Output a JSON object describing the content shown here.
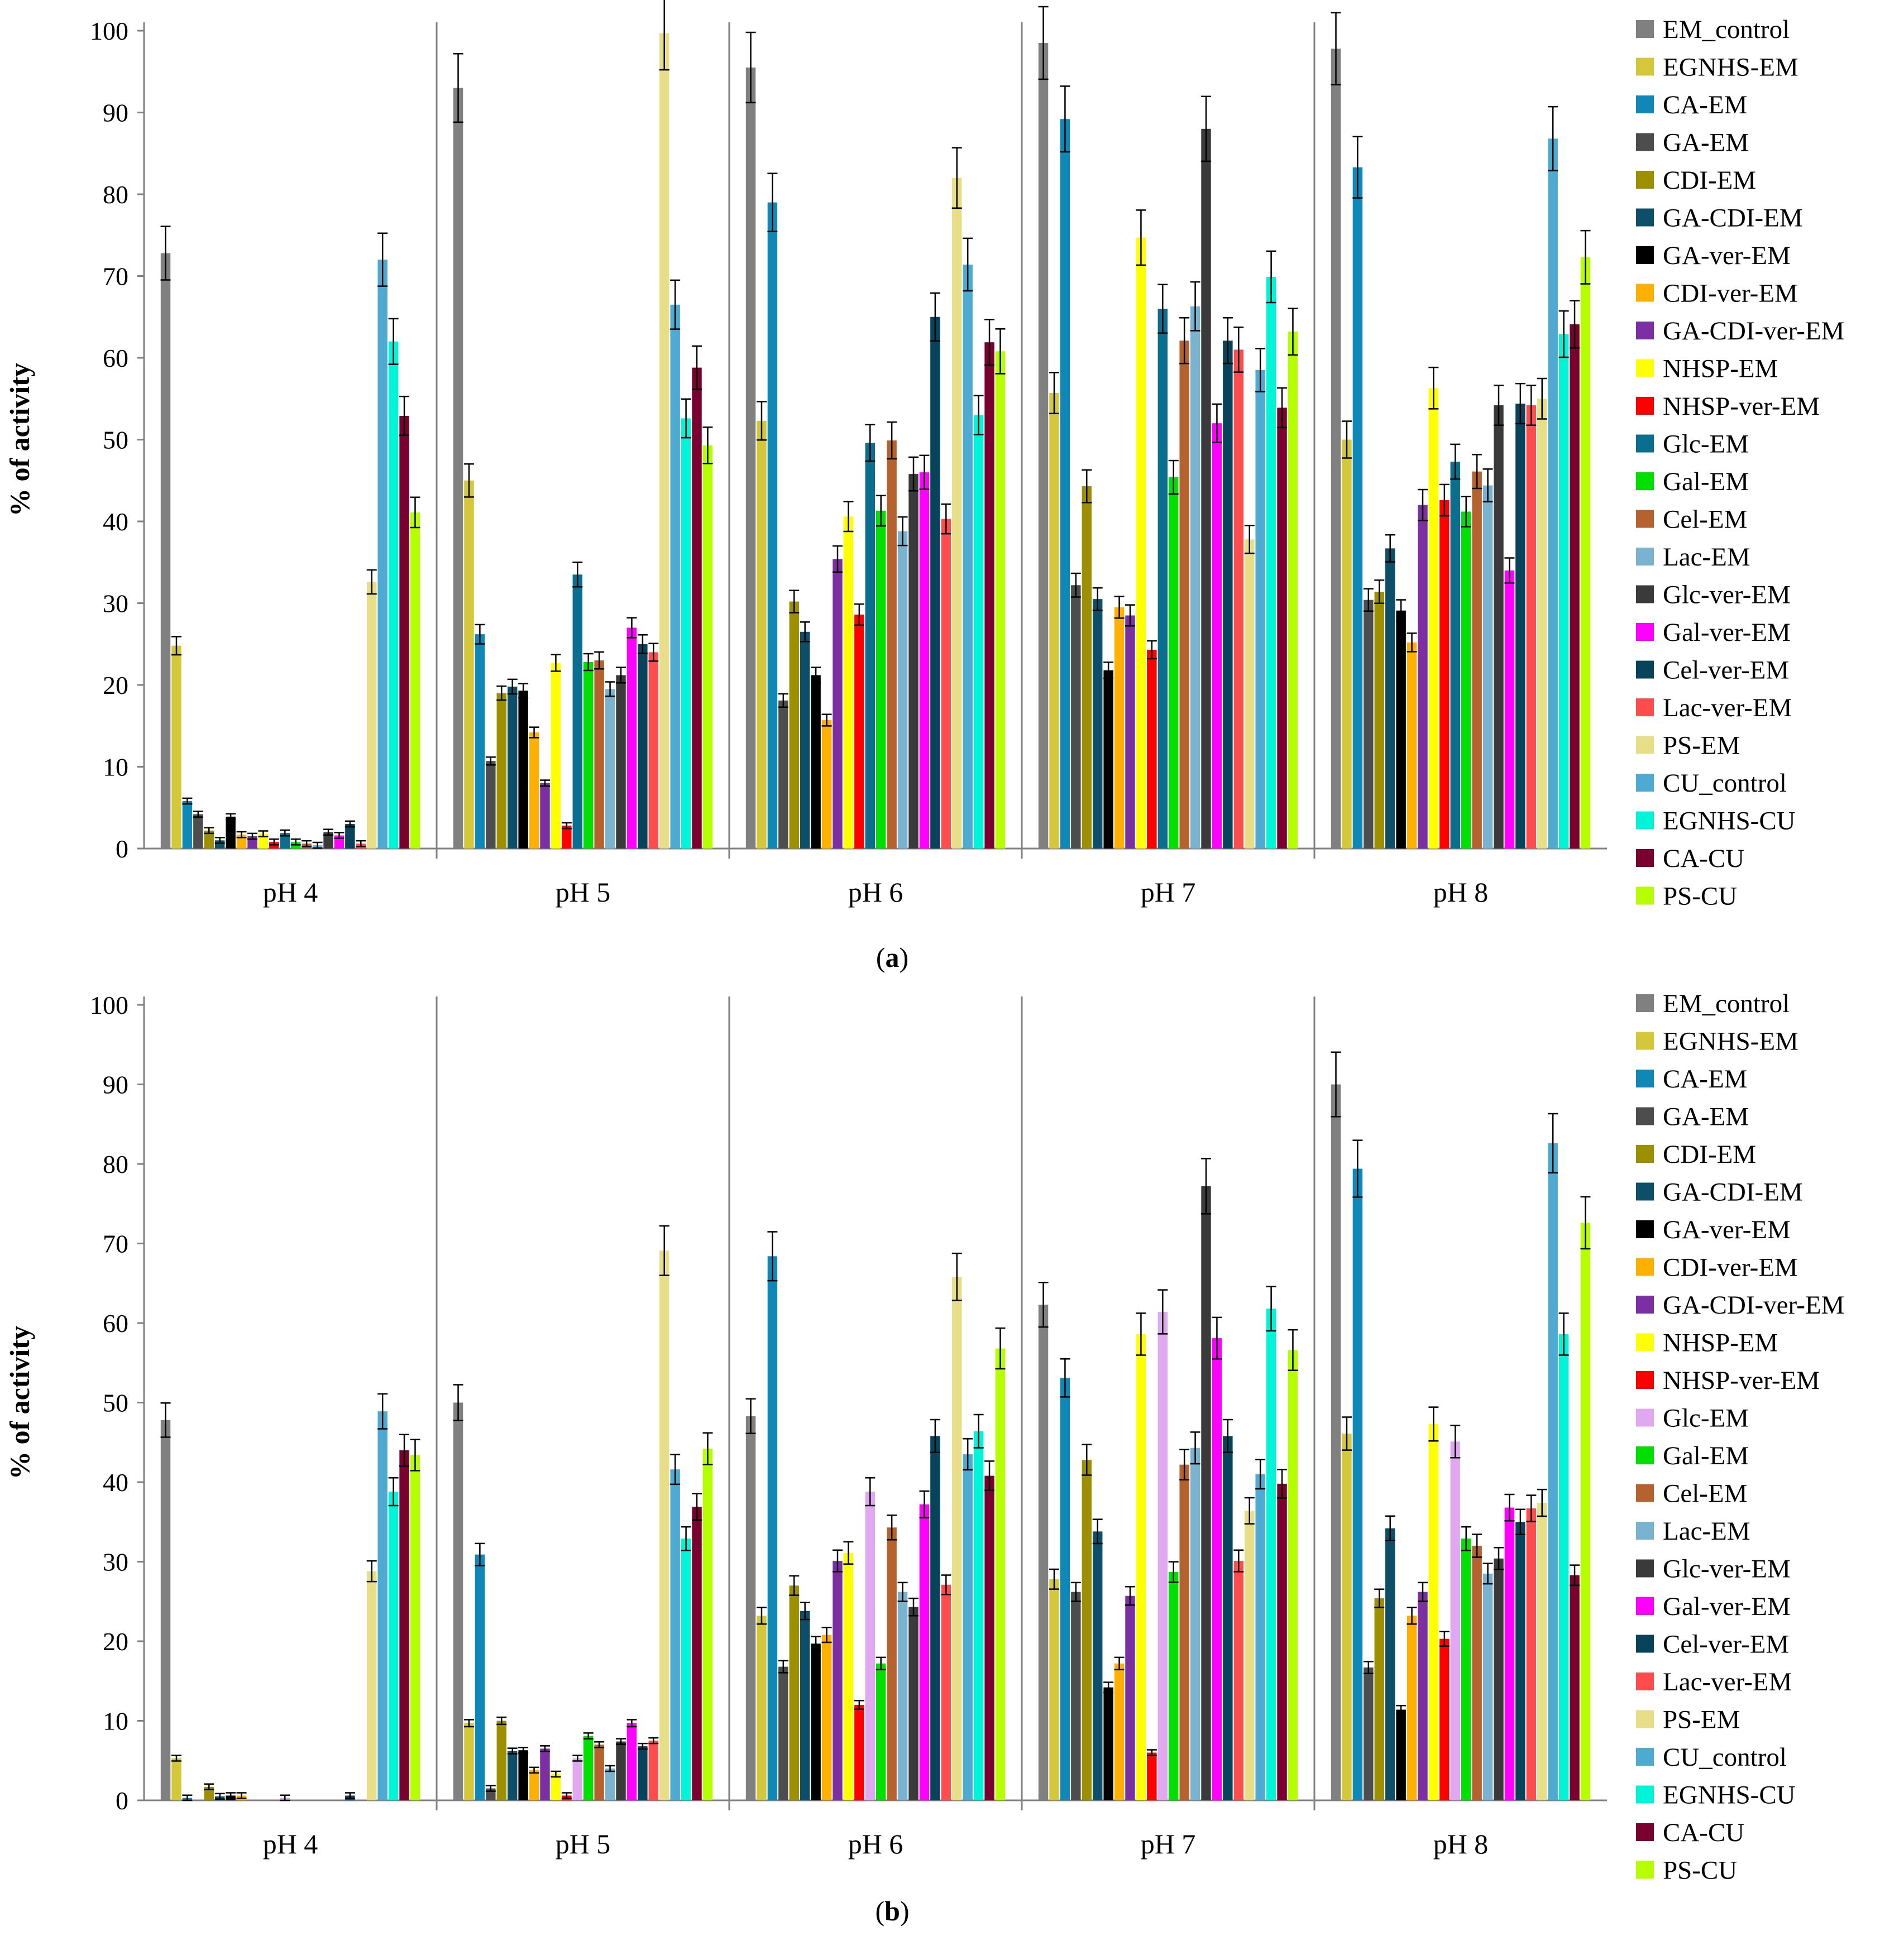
{
  "chart_data": [
    {
      "type": "bar",
      "panel_label": "a",
      "ylabel": "% of activity",
      "ylim": [
        0,
        100
      ],
      "yticks": [
        0,
        10,
        20,
        30,
        40,
        50,
        60,
        70,
        80,
        90,
        100
      ],
      "categories": [
        "pH 4",
        "pH 5",
        "pH 6",
        "pH 7",
        "pH 8"
      ],
      "legend_position": "right",
      "series": [
        {
          "name": "EM_control",
          "color": "#808080",
          "values": [
            72.8,
            93.0,
            95.5,
            98.5,
            97.8
          ]
        },
        {
          "name": "EGNHS-EM",
          "color": "#d4c83a",
          "values": [
            24.8,
            45.0,
            52.3,
            55.7,
            50.0
          ]
        },
        {
          "name": "CA-EM",
          "color": "#0f88b8",
          "values": [
            5.8,
            26.2,
            79.0,
            89.2,
            83.3
          ]
        },
        {
          "name": "GA-EM",
          "color": "#4d4d4d",
          "values": [
            4.2,
            10.7,
            18.1,
            32.2,
            30.4
          ]
        },
        {
          "name": "CDI-EM",
          "color": "#9c9000",
          "values": [
            2.2,
            19.0,
            30.2,
            44.3,
            31.4
          ]
        },
        {
          "name": "GA-CDI-EM",
          "color": "#0d4f68",
          "values": [
            1.0,
            19.8,
            26.5,
            30.5,
            36.7
          ]
        },
        {
          "name": "GA-ver-EM",
          "color": "#000000",
          "values": [
            3.9,
            19.3,
            21.2,
            21.8,
            29.1
          ]
        },
        {
          "name": "CDI-ver-EM",
          "color": "#ffb000",
          "values": [
            1.7,
            14.2,
            15.7,
            29.5,
            25.2
          ]
        },
        {
          "name": "GA-CDI-ver-EM",
          "color": "#7b2fa3",
          "values": [
            1.5,
            8.0,
            35.4,
            28.5,
            42.0
          ]
        },
        {
          "name": "NHSP-EM",
          "color": "#ffff00",
          "values": [
            1.8,
            22.7,
            40.6,
            74.7,
            56.3
          ]
        },
        {
          "name": "NHSP-ver-EM",
          "color": "#ff0000",
          "values": [
            0.8,
            2.8,
            28.6,
            24.3,
            42.6
          ]
        },
        {
          "name": "Glc-EM",
          "color": "#0a6f8e",
          "values": [
            1.9,
            33.5,
            49.6,
            66.0,
            47.3
          ]
        },
        {
          "name": "Gal-EM",
          "color": "#00e000",
          "values": [
            0.8,
            22.8,
            41.3,
            45.4,
            41.2
          ]
        },
        {
          "name": "Cel-EM",
          "color": "#b5622e",
          "values": [
            0.6,
            23.0,
            49.9,
            62.1,
            46.1
          ]
        },
        {
          "name": "Lac-EM",
          "color": "#79b3cf",
          "values": [
            0.4,
            19.5,
            38.8,
            66.3,
            44.4
          ]
        },
        {
          "name": "Glc-ver-EM",
          "color": "#3a3a3a",
          "values": [
            2.0,
            21.2,
            45.8,
            88.0,
            54.2
          ]
        },
        {
          "name": "Gal-ver-EM",
          "color": "#ff00ff",
          "values": [
            1.6,
            27.0,
            46.0,
            52.0,
            34.0
          ]
        },
        {
          "name": "Cel-ver-EM",
          "color": "#07435a",
          "values": [
            3.0,
            25.0,
            65.0,
            62.1,
            54.4
          ]
        },
        {
          "name": "Lac-ver-EM",
          "color": "#ff4d4d",
          "values": [
            0.6,
            24.0,
            40.3,
            61.0,
            54.2
          ]
        },
        {
          "name": "PS-EM",
          "color": "#e8de88",
          "values": [
            32.6,
            99.7,
            82.0,
            37.8,
            55.0
          ]
        },
        {
          "name": "CU_control",
          "color": "#4eaad0",
          "values": [
            72.0,
            66.5,
            71.4,
            58.5,
            86.8
          ]
        },
        {
          "name": "EGNHS-CU",
          "color": "#00f5d8",
          "values": [
            62.0,
            52.6,
            53.0,
            69.9,
            62.9
          ]
        },
        {
          "name": "CA-CU",
          "color": "#7a0030",
          "values": [
            52.9,
            58.8,
            61.9,
            53.9,
            64.1
          ]
        },
        {
          "name": "PS-CU",
          "color": "#b6ff00",
          "values": [
            41.1,
            49.3,
            60.8,
            63.2,
            72.3
          ]
        }
      ]
    },
    {
      "type": "bar",
      "panel_label": "b",
      "ylabel": "% of activity",
      "ylim": [
        0,
        100
      ],
      "yticks": [
        0,
        10,
        20,
        30,
        40,
        50,
        60,
        70,
        80,
        90,
        100
      ],
      "categories": [
        "pH 4",
        "pH 5",
        "pH 6",
        "pH 7",
        "pH 8"
      ],
      "legend_position": "right",
      "series": [
        {
          "name": "EM_control",
          "color": "#808080",
          "values": [
            47.8,
            50.0,
            48.3,
            62.3,
            90.0
          ]
        },
        {
          "name": "EGNHS-EM",
          "color": "#d4c83a",
          "values": [
            5.3,
            9.7,
            23.2,
            27.8,
            46.1
          ]
        },
        {
          "name": "CA-EM",
          "color": "#0f88b8",
          "values": [
            0.3,
            30.9,
            68.4,
            53.1,
            79.4
          ]
        },
        {
          "name": "GA-EM",
          "color": "#4d4d4d",
          "values": [
            0.0,
            1.5,
            16.8,
            26.2,
            16.7
          ]
        },
        {
          "name": "CDI-EM",
          "color": "#9c9000",
          "values": [
            1.7,
            10.0,
            27.0,
            42.8,
            25.4
          ]
        },
        {
          "name": "GA-CDI-EM",
          "color": "#0d4f68",
          "values": [
            0.5,
            6.2,
            23.8,
            33.8,
            34.2
          ]
        },
        {
          "name": "GA-ver-EM",
          "color": "#000000",
          "values": [
            0.6,
            6.3,
            19.7,
            14.2,
            11.4
          ]
        },
        {
          "name": "CDI-ver-EM",
          "color": "#ffb000",
          "values": [
            0.6,
            3.8,
            20.8,
            17.2,
            23.2
          ]
        },
        {
          "name": "GA-CDI-ver-EM",
          "color": "#7b2fa3",
          "values": [
            0.0,
            6.5,
            30.1,
            25.7,
            26.2
          ]
        },
        {
          "name": "NHSP-EM",
          "color": "#ffff00",
          "values": [
            0.0,
            3.3,
            31.1,
            58.6,
            47.3
          ]
        },
        {
          "name": "NHSP-ver-EM",
          "color": "#ff0000",
          "values": [
            0.0,
            0.6,
            12.0,
            6.0,
            20.3
          ]
        },
        {
          "name": "Glc-EM",
          "color": "#e0a8f0",
          "values": [
            0.3,
            5.3,
            38.8,
            61.4,
            45.1
          ]
        },
        {
          "name": "Gal-EM",
          "color": "#00e000",
          "values": [
            0.0,
            8.1,
            17.2,
            28.7,
            32.9
          ]
        },
        {
          "name": "Cel-EM",
          "color": "#b5622e",
          "values": [
            0.0,
            7.0,
            34.3,
            42.2,
            32.0
          ]
        },
        {
          "name": "Lac-EM",
          "color": "#79b3cf",
          "values": [
            0.0,
            4.0,
            26.2,
            44.3,
            28.5
          ]
        },
        {
          "name": "Glc-ver-EM",
          "color": "#3a3a3a",
          "values": [
            0.0,
            7.4,
            24.3,
            77.2,
            30.4
          ]
        },
        {
          "name": "Gal-ver-EM",
          "color": "#ff00ff",
          "values": [
            0.0,
            9.7,
            37.2,
            58.1,
            36.8
          ]
        },
        {
          "name": "Cel-ver-EM",
          "color": "#07435a",
          "values": [
            0.6,
            6.8,
            45.8,
            45.8,
            35.0
          ]
        },
        {
          "name": "Lac-ver-EM",
          "color": "#ff4d4d",
          "values": [
            0.0,
            7.5,
            27.1,
            30.1,
            36.7
          ]
        },
        {
          "name": "PS-EM",
          "color": "#e8de88",
          "values": [
            28.8,
            69.1,
            65.8,
            36.4,
            37.4
          ]
        },
        {
          "name": "CU_control",
          "color": "#4eaad0",
          "values": [
            48.9,
            41.6,
            43.5,
            41.0,
            82.6
          ]
        },
        {
          "name": "EGNHS-CU",
          "color": "#00f5d8",
          "values": [
            38.8,
            32.9,
            46.4,
            61.8,
            58.6
          ]
        },
        {
          "name": "CA-CU",
          "color": "#7a0030",
          "values": [
            44.0,
            36.9,
            40.8,
            39.8,
            28.3
          ]
        },
        {
          "name": "PS-CU",
          "color": "#b6ff00",
          "values": [
            43.4,
            44.2,
            56.8,
            56.6,
            72.6
          ]
        }
      ]
    }
  ]
}
